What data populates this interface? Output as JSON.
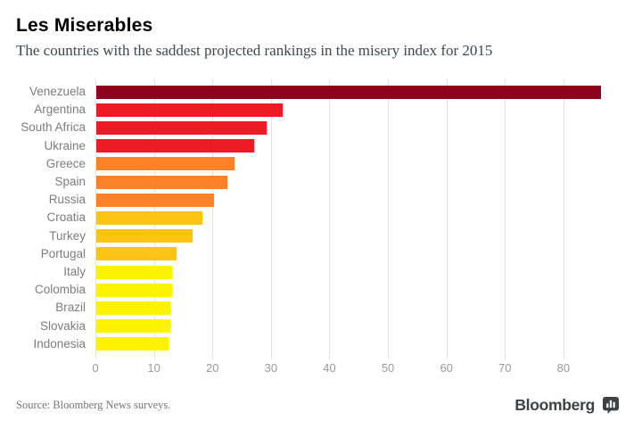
{
  "header": {
    "title": "Les Miserables",
    "subtitle": "The countries with the saddest projected rankings in the misery index for 2015"
  },
  "footer": {
    "source": "Source: Bloomberg News surveys.",
    "brand": "Bloomberg",
    "brand_icon": "bar-chart-bubble-icon"
  },
  "chart_data": {
    "type": "bar",
    "orientation": "horizontal",
    "title": "Les Miserables",
    "subtitle": "The countries with the saddest projected rankings in the misery index for 2015",
    "categories": [
      "Venezuela",
      "Argentina",
      "South Africa",
      "Ukraine",
      "Greece",
      "Spain",
      "Russia",
      "Croatia",
      "Turkey",
      "Portugal",
      "Italy",
      "Colombia",
      "Brazil",
      "Slovakia",
      "Indonesia"
    ],
    "values": [
      86.2,
      31.8,
      29.1,
      26.9,
      23.6,
      22.4,
      20.1,
      18.2,
      16.4,
      13.7,
      12.9,
      12.9,
      12.6,
      12.6,
      12.4
    ],
    "bar_colors": [
      "#8e021f",
      "#ed1c24",
      "#ed1c24",
      "#ed1c24",
      "#fb8228",
      "#fb8228",
      "#fb8228",
      "#fbc412",
      "#fbc412",
      "#fbc412",
      "#fdf200",
      "#fdf200",
      "#fdf200",
      "#fdf200",
      "#fdf200"
    ],
    "color_legend": {
      "dark_red": "#8e021f",
      "red": "#ed1c24",
      "orange": "#fb8228",
      "amber": "#fbc412",
      "yellow": "#fdf200"
    },
    "xlabel": "",
    "ylabel": "",
    "xticks": [
      0,
      10,
      20,
      30,
      40,
      50,
      60,
      70,
      80
    ],
    "xlim": [
      0,
      91.9
    ],
    "grid": true,
    "gridline_color": "#e2e2e2",
    "legend_position": "none"
  }
}
